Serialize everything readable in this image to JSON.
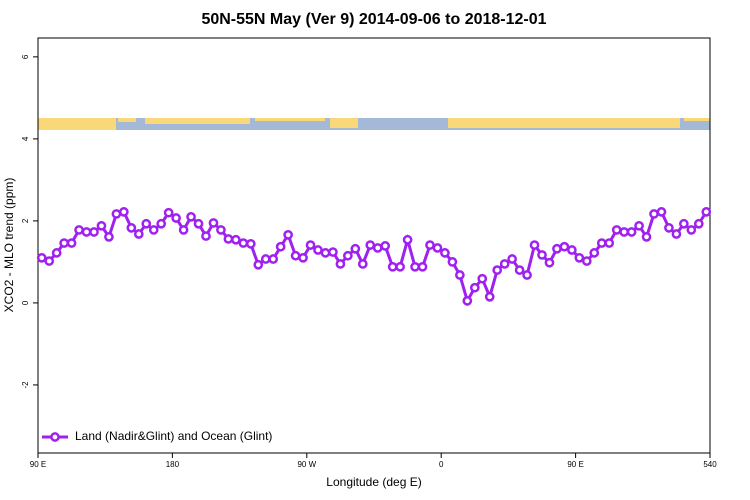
{
  "chart_data": {
    "type": "line",
    "title": "50N-55N May (Ver 9)   2014-09-06 to 2018-12-01",
    "x_label": "Longitude (deg E)",
    "y_label": "XCO2 - MLO trend (ppm)",
    "x": [
      92.5,
      97.5,
      102.5,
      107.5,
      112.5,
      117.5,
      122.5,
      127.5,
      132.5,
      137.5,
      142.5,
      147.5,
      152.5,
      157.5,
      162.5,
      167.5,
      172.5,
      177.5,
      182.5,
      187.5,
      192.5,
      197.5,
      202.5,
      207.5,
      212.5,
      217.5,
      222.5,
      227.5,
      232.5,
      237.5,
      242.5,
      247.5,
      252.5,
      257.5,
      262.5,
      267.5,
      272.5,
      277.5,
      282.5,
      287.5,
      292.5,
      297.5,
      302.5,
      307.5,
      312.5,
      317.5,
      322.5,
      327.5,
      332.5,
      337.5,
      342.5,
      347.5,
      352.5,
      357.5,
      362.5,
      367.5,
      372.5,
      377.5,
      382.5,
      387.5,
      392.5,
      397.5,
      402.5,
      407.5,
      412.5,
      417.5,
      422.5,
      427.5,
      432.5,
      437.5,
      442.5,
      447.5,
      452.5,
      457.5,
      462.5,
      467.5,
      472.5,
      477.5,
      482.5,
      487.5,
      492.5,
      497.5,
      502.5,
      507.5,
      512.5,
      517.5,
      522.5,
      527.5,
      532.5,
      537.5
    ],
    "series": [
      {
        "name": "Land (Nadir&Glint) and Ocean (Glint)",
        "color": "#a020f0",
        "values": [
          1.1,
          1.02,
          1.22,
          1.46,
          1.46,
          1.78,
          1.73,
          1.73,
          1.88,
          1.61,
          2.17,
          2.22,
          1.83,
          1.68,
          1.93,
          1.78,
          1.93,
          2.2,
          2.07,
          1.78,
          2.1,
          1.93,
          1.63,
          1.95,
          1.78,
          1.56,
          1.54,
          1.46,
          1.44,
          0.93,
          1.07,
          1.07,
          1.37,
          1.66,
          1.15,
          1.1,
          1.41,
          1.29,
          1.22,
          1.24,
          0.95,
          1.15,
          1.32,
          0.95,
          1.41,
          1.34,
          1.39,
          0.88,
          0.88,
          1.54,
          0.88,
          0.88,
          1.41,
          1.34,
          1.22,
          1.0,
          0.68,
          0.05,
          0.37,
          0.59,
          0.15,
          0.8,
          0.95,
          1.07,
          0.8,
          0.68,
          1.41,
          1.17,
          0.98,
          1.32,
          1.37,
          1.29,
          1.1,
          1.02,
          1.22,
          1.46,
          1.46,
          1.78,
          1.73,
          1.73,
          1.88,
          1.61,
          2.17,
          2.22,
          1.83,
          1.68,
          1.93,
          1.78,
          1.93,
          2.22
        ]
      }
    ],
    "xlim": [
      90,
      540
    ],
    "xticks": [
      {
        "value": 90,
        "label": "90 E"
      },
      180,
      {
        "value": 270,
        "label": "90 W"
      },
      {
        "value": 360,
        "label": "0"
      },
      {
        "value": 450,
        "label": "90 E"
      },
      540
    ],
    "ylim": [
      -3.66,
      6.46
    ],
    "yticks": [
      -2,
      0,
      2,
      4,
      6
    ],
    "grid": false,
    "legend": "bottomleft"
  }
}
